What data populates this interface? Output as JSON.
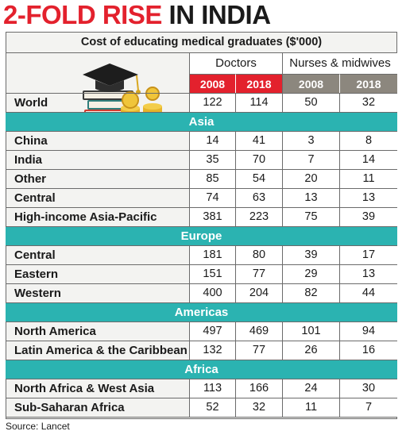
{
  "headline": {
    "part1": "2-FOLD RISE ",
    "part2": "IN INDIA"
  },
  "caption": "Cost of educating medical graduates ($'000)",
  "groups": [
    "Doctors",
    "Nurses & midwives"
  ],
  "years": [
    "2008",
    "2018",
    "2008",
    "2018"
  ],
  "colors": {
    "accent_red": "#e3212d",
    "section_teal": "#2bb3b1",
    "nurse_year_gray": "#8c877e",
    "cell_white": "#ffffff",
    "panel_bg": "#f3f3f1"
  },
  "illustration_icon": "graduation-cap-books-coins-icon",
  "source": "Source: Lancet",
  "rows": [
    {
      "kind": "row",
      "label": "World",
      "values": [
        "122",
        "114",
        "50",
        "32"
      ]
    },
    {
      "kind": "section",
      "label": "Asia"
    },
    {
      "kind": "row",
      "label": "China",
      "values": [
        "14",
        "41",
        "3",
        "8"
      ]
    },
    {
      "kind": "row",
      "label": "India",
      "values": [
        "35",
        "70",
        "7",
        "14"
      ]
    },
    {
      "kind": "row",
      "label": "Other",
      "values": [
        "85",
        "54",
        "20",
        "11"
      ]
    },
    {
      "kind": "row",
      "label": "Central",
      "values": [
        "74",
        "63",
        "13",
        "13"
      ]
    },
    {
      "kind": "row",
      "label": "High-income Asia-Pacific",
      "values": [
        "381",
        "223",
        "75",
        "39"
      ]
    },
    {
      "kind": "section",
      "label": "Europe"
    },
    {
      "kind": "row",
      "label": "Central",
      "values": [
        "181",
        "80",
        "39",
        "17"
      ]
    },
    {
      "kind": "row",
      "label": "Eastern",
      "values": [
        "151",
        "77",
        "29",
        "13"
      ]
    },
    {
      "kind": "row",
      "label": "Western",
      "values": [
        "400",
        "204",
        "82",
        "44"
      ]
    },
    {
      "kind": "section",
      "label": "Americas"
    },
    {
      "kind": "row",
      "label": "North America",
      "values": [
        "497",
        "469",
        "101",
        "94"
      ]
    },
    {
      "kind": "row",
      "label": "Latin America & the Caribbean",
      "values": [
        "132",
        "77",
        "26",
        "16"
      ]
    },
    {
      "kind": "section",
      "label": "Africa"
    },
    {
      "kind": "row",
      "label": "North Africa & West Asia",
      "values": [
        "113",
        "166",
        "24",
        "30"
      ]
    },
    {
      "kind": "row",
      "label": "Sub-Saharan Africa",
      "values": [
        "52",
        "32",
        "11",
        "7"
      ]
    }
  ],
  "chart_data": {
    "type": "table",
    "title": "Cost of educating medical graduates ($'000)",
    "columns": [
      "Doctors 2008",
      "Doctors 2018",
      "Nurses & midwives 2008",
      "Nurses & midwives 2018"
    ],
    "rows": [
      {
        "region": "World",
        "values": [
          122,
          114,
          50,
          32
        ]
      },
      {
        "group": "Asia",
        "region": "China",
        "values": [
          14,
          41,
          3,
          8
        ]
      },
      {
        "group": "Asia",
        "region": "India",
        "values": [
          35,
          70,
          7,
          14
        ]
      },
      {
        "group": "Asia",
        "region": "Other",
        "values": [
          85,
          54,
          20,
          11
        ]
      },
      {
        "group": "Asia",
        "region": "Central",
        "values": [
          74,
          63,
          13,
          13
        ]
      },
      {
        "group": "Asia",
        "region": "High-income Asia-Pacific",
        "values": [
          381,
          223,
          75,
          39
        ]
      },
      {
        "group": "Europe",
        "region": "Central",
        "values": [
          181,
          80,
          39,
          17
        ]
      },
      {
        "group": "Europe",
        "region": "Eastern",
        "values": [
          151,
          77,
          29,
          13
        ]
      },
      {
        "group": "Europe",
        "region": "Western",
        "values": [
          400,
          204,
          82,
          44
        ]
      },
      {
        "group": "Americas",
        "region": "North America",
        "values": [
          497,
          469,
          101,
          94
        ]
      },
      {
        "group": "Americas",
        "region": "Latin America & the Caribbean",
        "values": [
          132,
          77,
          26,
          16
        ]
      },
      {
        "group": "Africa",
        "region": "North Africa & West Asia",
        "values": [
          113,
          166,
          24,
          30
        ]
      },
      {
        "group": "Africa",
        "region": "Sub-Saharan Africa",
        "values": [
          52,
          32,
          11,
          7
        ]
      }
    ]
  }
}
